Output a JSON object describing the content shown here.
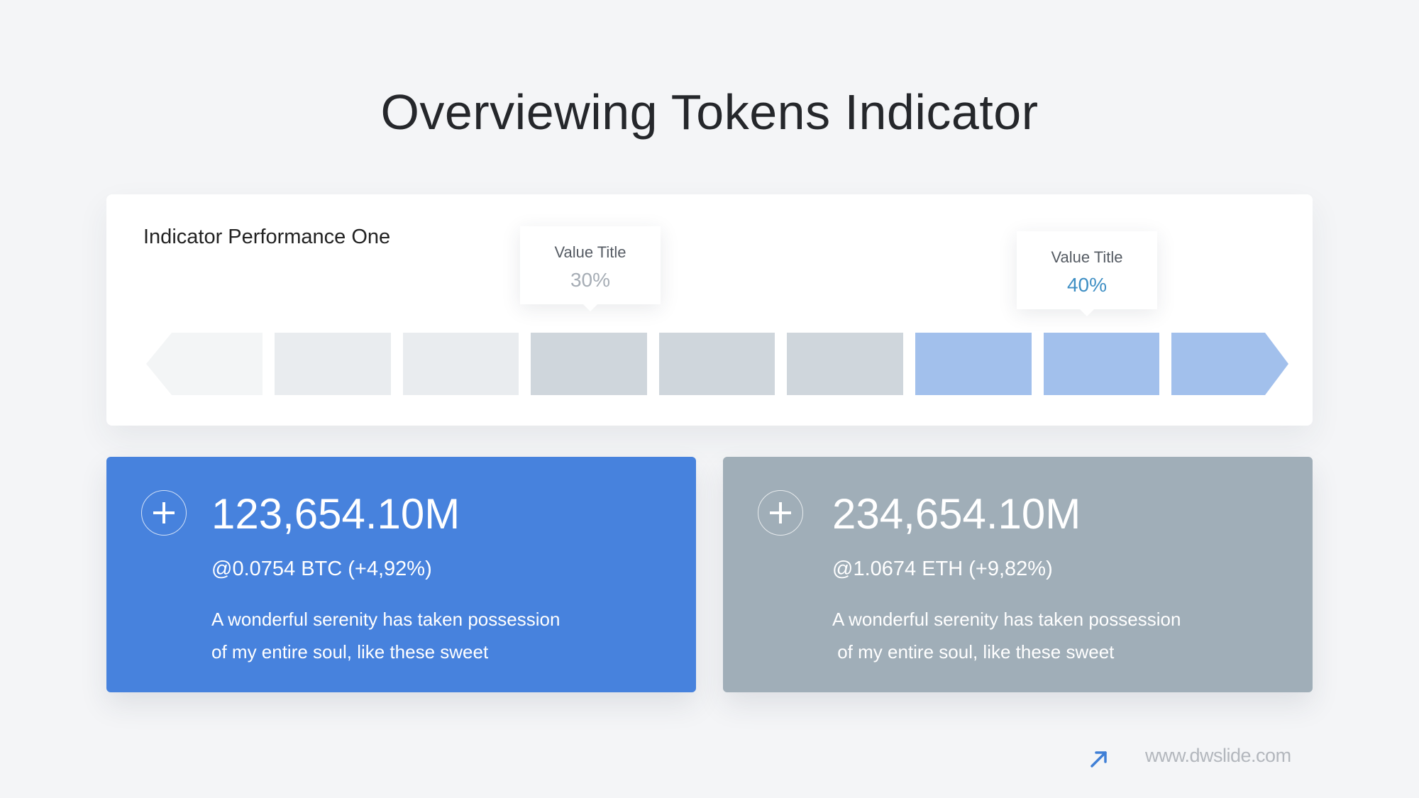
{
  "slide": {
    "title": "Overviewing Tokens Indicator"
  },
  "performance": {
    "label": "Indicator Performance One",
    "tooltips": [
      {
        "title": "Value Title",
        "value": "30%"
      },
      {
        "title": "Value Title",
        "value": "40%"
      }
    ],
    "segments": [
      {
        "color": "#f3f5f6"
      },
      {
        "color": "#e9ecef"
      },
      {
        "color": "#e9ecef"
      },
      {
        "color": "#cfd6dc"
      },
      {
        "color": "#cfd6dc"
      },
      {
        "color": "#cfd6dc"
      },
      {
        "color": "#a2c0ec"
      },
      {
        "color": "#a2c0ec"
      },
      {
        "color": "#a2c0ec"
      }
    ]
  },
  "cards": [
    {
      "amount": "123,654.10M",
      "rate": "@0.0754 BTC (+4,92%)",
      "desc_line1": "A wonderful serenity has taken possession",
      "desc_line2": "of my entire soul, like these sweet",
      "color": "#4782dd"
    },
    {
      "amount": "234,654.10M",
      "rate": "@1.0674 ETH (+9,82%)",
      "desc_line1": "A wonderful serenity has taken possession",
      "desc_line2": " of my entire soul, like these sweet",
      "color": "#a0aeb8"
    }
  ],
  "footer": {
    "url": "www.dwslide.com",
    "icon": "arrow-up-right-icon",
    "accent": "#3f7fd6"
  }
}
